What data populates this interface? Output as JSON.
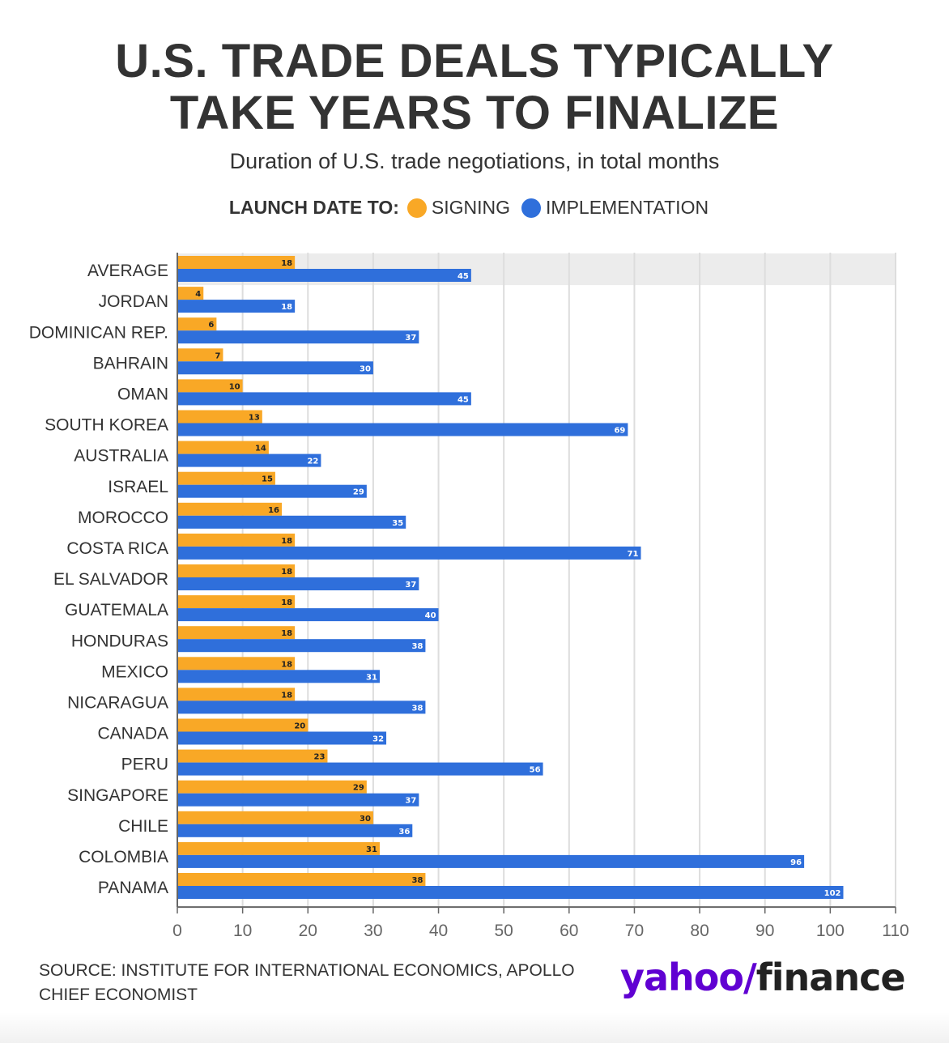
{
  "header": {
    "title_line1": "U.S. TRADE DEALS TYPICALLY",
    "title_line2": "TAKE YEARS TO FINALIZE",
    "subtitle": "Duration of U.S. trade negotiations, in total months"
  },
  "legend": {
    "lead": "LAUNCH DATE TO:",
    "signing_label": "SIGNING",
    "implementation_label": "IMPLEMENTATION"
  },
  "colors": {
    "signing": "#f9a826",
    "implementation": "#2f6fdb",
    "highlight": "#ececec",
    "grid": "#dddddd",
    "axis": "#666666"
  },
  "chart_data": {
    "type": "bar",
    "orientation": "horizontal",
    "categories": [
      "AVERAGE",
      "JORDAN",
      "DOMINICAN REP.",
      "BAHRAIN",
      "OMAN",
      "SOUTH KOREA",
      "AUSTRALIA",
      "ISRAEL",
      "MOROCCO",
      "COSTA RICA",
      "EL SALVADOR",
      "GUATEMALA",
      "HONDURAS",
      "MEXICO",
      "NICARAGUA",
      "CANADA",
      "PERU",
      "SINGAPORE",
      "CHILE",
      "COLOMBIA",
      "PANAMA"
    ],
    "series": [
      {
        "name": "SIGNING",
        "values": [
          18,
          4,
          6,
          7,
          10,
          13,
          14,
          15,
          16,
          18,
          18,
          18,
          18,
          18,
          18,
          20,
          23,
          29,
          30,
          31,
          38
        ]
      },
      {
        "name": "IMPLEMENTATION",
        "values": [
          45,
          18,
          37,
          30,
          45,
          69,
          22,
          29,
          35,
          71,
          37,
          40,
          38,
          31,
          38,
          32,
          56,
          37,
          36,
          96,
          102
        ]
      }
    ],
    "xlim": [
      0,
      110
    ],
    "xticks": [
      0,
      10,
      20,
      30,
      40,
      50,
      60,
      70,
      80,
      90,
      100,
      110
    ],
    "highlighted_category": "AVERAGE",
    "grid": true,
    "legend_position": "top-center"
  },
  "footer": {
    "source": "SOURCE: INSTITUTE FOR INTERNATIONAL ECONOMICS, APOLLO CHIEF ECONOMIST",
    "logo_yahoo": "yahoo/",
    "logo_finance": "finance"
  }
}
